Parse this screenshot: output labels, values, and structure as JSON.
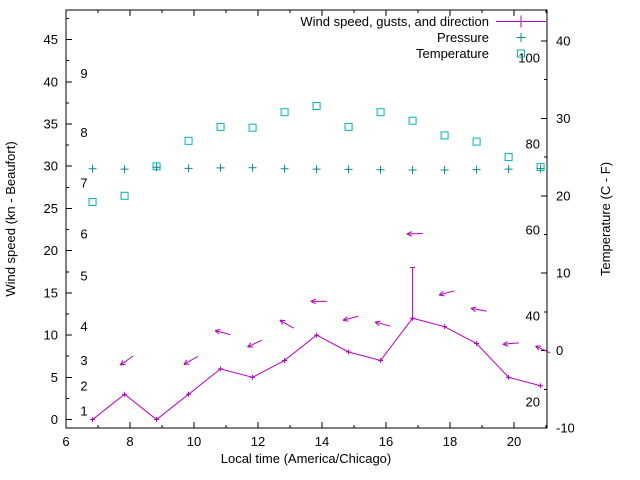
{
  "chart_data": {
    "type": "line",
    "title": "",
    "xlabel": "Local time (America/Chicago)",
    "ylabel_left": "Wind speed (kn - Beaufort)",
    "ylabel_right": "Temperature (C - F)",
    "xlim": [
      6,
      21.03
    ],
    "ylim_left": [
      -1,
      48.5
    ],
    "ylim_right_c": [
      -10,
      44
    ],
    "x_major_ticks": [
      6,
      8,
      10,
      12,
      14,
      16,
      18,
      20
    ],
    "x_minor_ticks": [
      7,
      9,
      11,
      13,
      15,
      17,
      19,
      21
    ],
    "y_left_major_ticks": [
      0,
      5,
      10,
      15,
      20,
      25,
      30,
      35,
      40,
      45
    ],
    "y_right_major_ticks_c": [
      -10,
      0,
      10,
      20,
      30,
      40
    ],
    "beaufort_scale_labels": [
      {
        "label": "1",
        "kn": 1
      },
      {
        "label": "2",
        "kn": 4
      },
      {
        "label": "3",
        "kn": 7
      },
      {
        "label": "4",
        "kn": 11
      },
      {
        "label": "5",
        "kn": 17
      },
      {
        "label": "6",
        "kn": 22
      },
      {
        "label": "7",
        "kn": 28
      },
      {
        "label": "8",
        "kn": 34
      },
      {
        "label": "9",
        "kn": 41
      }
    ],
    "fahrenheit_labels": [
      {
        "label": "20",
        "f": 20
      },
      {
        "label": "40",
        "f": 40
      },
      {
        "label": "60",
        "f": 60
      },
      {
        "label": "80",
        "f": 80
      },
      {
        "label": "100",
        "f": 100
      }
    ],
    "legend": [
      {
        "label": "Wind speed, gusts, and direction",
        "series": "wind"
      },
      {
        "label": "Pressure",
        "series": "pressure"
      },
      {
        "label": "Temperature",
        "series": "temperature"
      }
    ],
    "colors": {
      "wind": "#b400be",
      "pressure": "#008b8b",
      "temperature": "#00b2b2",
      "axis": "#000000",
      "background": "#ffffff"
    },
    "series": {
      "wind": {
        "x": [
          6.83,
          7.83,
          8.83,
          9.83,
          10.83,
          11.83,
          12.83,
          13.83,
          14.83,
          15.83,
          16.83,
          17.83,
          18.83,
          19.83,
          20.83
        ],
        "speed_kn": [
          0,
          3,
          0,
          3,
          6,
          5,
          7,
          10,
          8,
          7,
          12,
          11,
          9,
          5,
          4
        ],
        "gust_kn": [
          0,
          3,
          0,
          3,
          6,
          5,
          7,
          10,
          8,
          7,
          18,
          11,
          9,
          5,
          4
        ]
      },
      "wind_direction_arrows": [
        {
          "x": 7.9,
          "kn": 7,
          "angle_deg": 215
        },
        {
          "x": 9.9,
          "kn": 7,
          "angle_deg": 210
        },
        {
          "x": 10.9,
          "kn": 10.3,
          "angle_deg": 165
        },
        {
          "x": 11.9,
          "kn": 9,
          "angle_deg": 205
        },
        {
          "x": 12.9,
          "kn": 11.3,
          "angle_deg": 150
        },
        {
          "x": 13.9,
          "kn": 14,
          "angle_deg": 180
        },
        {
          "x": 14.9,
          "kn": 12,
          "angle_deg": 195
        },
        {
          "x": 15.9,
          "kn": 11.3,
          "angle_deg": 165
        },
        {
          "x": 16.9,
          "kn": 22,
          "angle_deg": 182
        },
        {
          "x": 17.9,
          "kn": 15,
          "angle_deg": 195
        },
        {
          "x": 18.9,
          "kn": 13,
          "angle_deg": 170
        },
        {
          "x": 19.9,
          "kn": 9,
          "angle_deg": 185
        },
        {
          "x": 20.9,
          "kn": 8.3,
          "angle_deg": 155
        }
      ],
      "pressure": {
        "x": [
          6.83,
          7.83,
          8.83,
          9.83,
          10.83,
          11.83,
          12.83,
          13.83,
          14.83,
          15.83,
          16.83,
          17.83,
          18.83,
          19.83,
          20.83
        ],
        "inhg": [
          29.7,
          29.65,
          29.88,
          29.75,
          29.8,
          29.82,
          29.7,
          29.65,
          29.62,
          29.58,
          29.55,
          29.55,
          29.6,
          29.65,
          29.72
        ]
      },
      "temperature": {
        "x": [
          6.83,
          7.83,
          8.83,
          9.83,
          10.83,
          11.83,
          12.83,
          13.83,
          14.83,
          15.83,
          16.83,
          17.83,
          18.83,
          19.83,
          20.83
        ],
        "celsius": [
          19.2,
          20.0,
          23.8,
          27.1,
          28.9,
          28.8,
          30.8,
          31.6,
          28.9,
          30.8,
          29.7,
          27.8,
          27.0,
          25.0,
          23.7
        ]
      }
    }
  }
}
